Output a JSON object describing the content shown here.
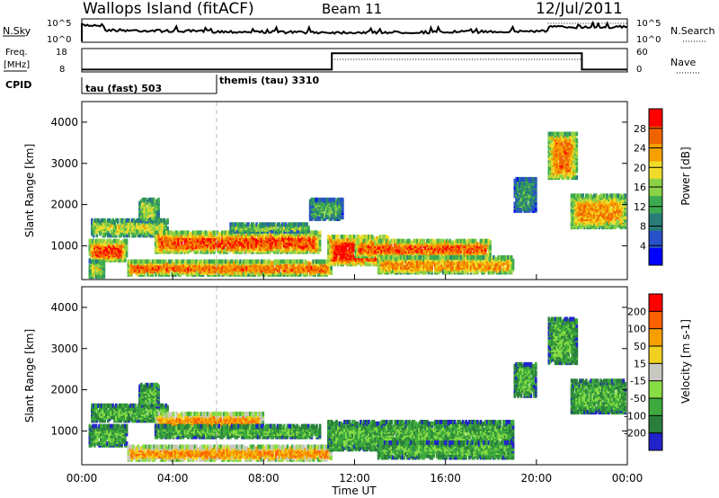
{
  "header": {
    "station": "Wallops Island (fitACF)",
    "beam": "Beam 11",
    "date": "12/Jul/2011"
  },
  "nsky_panel": {
    "left_label": "N.Sky",
    "right_label": "N.Search",
    "left_ticks": [
      "10^5",
      "10^0"
    ],
    "right_ticks": [
      "10^5",
      "10^0"
    ]
  },
  "freq_panel": {
    "left_label_line1": "Freq.",
    "left_label_line2": "[MHz]",
    "right_label": "Nave",
    "left_ticks": [
      "18",
      "8"
    ],
    "right_ticks": [
      "60",
      "0"
    ],
    "freq_segments": [
      {
        "from": "00:00",
        "to": "11:00",
        "mhz": 9
      },
      {
        "from": "11:00",
        "to": "22:00",
        "mhz": 16
      },
      {
        "from": "22:00",
        "to": "24:00",
        "mhz": 9
      }
    ]
  },
  "cpid": {
    "label": "CPID",
    "modes": [
      {
        "start": "00:00",
        "name": "tau (fast) 503"
      },
      {
        "start": "06:00",
        "name": "themis (tau) 3310"
      }
    ]
  },
  "x_axis": {
    "label": "Time UT",
    "ticks": [
      "00:00",
      "04:00",
      "08:00",
      "12:00",
      "16:00",
      "20:00",
      "00:00"
    ]
  },
  "chart_data": [
    {
      "type": "heatmap",
      "quantity": "Power",
      "ylabel": "Slant Range [km]",
      "yticks": [
        1000,
        2000,
        3000,
        4000
      ],
      "ylim": [
        180,
        4500
      ],
      "xlim_hours": [
        0,
        24
      ],
      "colorbar": {
        "label": "Power [dB]",
        "ticks": [
          "28",
          "24",
          "20",
          "16",
          "12",
          "8",
          "4"
        ],
        "colors": [
          "#0000ff",
          "#2850c8",
          "#287d78",
          "#3caa50",
          "#8cd246",
          "#f0dc28",
          "#f5a000",
          "#f06400",
          "#ff0000"
        ]
      },
      "echo_regions": [
        {
          "t0": 0.4,
          "t1": 3.8,
          "r0": 1200,
          "r1": 1600,
          "level": 0.55
        },
        {
          "t0": 0.3,
          "t1": 2.0,
          "r0": 600,
          "r1": 1100,
          "level": 0.85
        },
        {
          "t0": 2.5,
          "t1": 3.4,
          "r0": 1550,
          "r1": 2100,
          "level": 0.55
        },
        {
          "t0": 3.2,
          "t1": 10.5,
          "r0": 800,
          "r1": 1300,
          "level": 0.85
        },
        {
          "t0": 6.5,
          "t1": 10.0,
          "r0": 1300,
          "r1": 1500,
          "level": 0.5
        },
        {
          "t0": 2.0,
          "t1": 11.0,
          "r0": 250,
          "r1": 600,
          "level": 0.8
        },
        {
          "t0": 10.8,
          "t1": 13.5,
          "r0": 500,
          "r1": 1200,
          "level": 0.95
        },
        {
          "t0": 12.0,
          "t1": 18.0,
          "r0": 700,
          "r1": 1100,
          "level": 0.85
        },
        {
          "t0": 13.0,
          "t1": 19.0,
          "r0": 300,
          "r1": 700,
          "level": 0.75
        },
        {
          "t0": 19.0,
          "t1": 20.0,
          "r0": 1800,
          "r1": 2600,
          "level": 0.35
        },
        {
          "t0": 20.5,
          "t1": 21.8,
          "r0": 2600,
          "r1": 3700,
          "level": 0.8
        },
        {
          "t0": 21.5,
          "t1": 24.0,
          "r0": 1400,
          "r1": 2200,
          "level": 0.75
        },
        {
          "t0": 10.0,
          "t1": 11.5,
          "r0": 1600,
          "r1": 2100,
          "level": 0.4
        },
        {
          "t0": 0.3,
          "t1": 1.0,
          "r0": 200,
          "r1": 600,
          "level": 0.6
        }
      ]
    },
    {
      "type": "heatmap",
      "quantity": "Velocity",
      "ylabel": "Slant Range [km]",
      "yticks": [
        1000,
        2000,
        3000,
        4000
      ],
      "ylim": [
        180,
        4500
      ],
      "xlim_hours": [
        0,
        24
      ],
      "colorbar": {
        "label": "Velocity [m s-1]",
        "ticks": [
          "200",
          "100",
          "50",
          "15",
          "-15",
          "-50",
          "-100",
          "-200"
        ],
        "colors": [
          "#2222cc",
          "#2a7f3c",
          "#3daa3d",
          "#88dd44",
          "#c8c8c0",
          "#f0d020",
          "#f5a000",
          "#ff6000",
          "#ff0000"
        ]
      },
      "echo_regions": [
        {
          "t0": 0.4,
          "t1": 3.8,
          "r0": 1200,
          "r1": 1600,
          "level": 0.3
        },
        {
          "t0": 0.3,
          "t1": 2.0,
          "r0": 600,
          "r1": 1100,
          "level": 0.3
        },
        {
          "t0": 2.5,
          "t1": 3.4,
          "r0": 1550,
          "r1": 2100,
          "level": 0.3
        },
        {
          "t0": 3.2,
          "t1": 8.0,
          "r0": 1000,
          "r1": 1400,
          "level": 0.75
        },
        {
          "t0": 3.2,
          "t1": 10.5,
          "r0": 800,
          "r1": 1100,
          "level": 0.3
        },
        {
          "t0": 2.0,
          "t1": 11.0,
          "r0": 250,
          "r1": 600,
          "level": 0.75
        },
        {
          "t0": 10.8,
          "t1": 19.0,
          "r0": 500,
          "r1": 1200,
          "level": 0.3
        },
        {
          "t0": 13.0,
          "t1": 19.0,
          "r0": 300,
          "r1": 700,
          "level": 0.3
        },
        {
          "t0": 19.0,
          "t1": 20.0,
          "r0": 1800,
          "r1": 2600,
          "level": 0.3
        },
        {
          "t0": 20.5,
          "t1": 21.8,
          "r0": 2600,
          "r1": 3700,
          "level": 0.3
        },
        {
          "t0": 21.5,
          "t1": 24.0,
          "r0": 1400,
          "r1": 2200,
          "level": 0.3
        }
      ]
    }
  ]
}
